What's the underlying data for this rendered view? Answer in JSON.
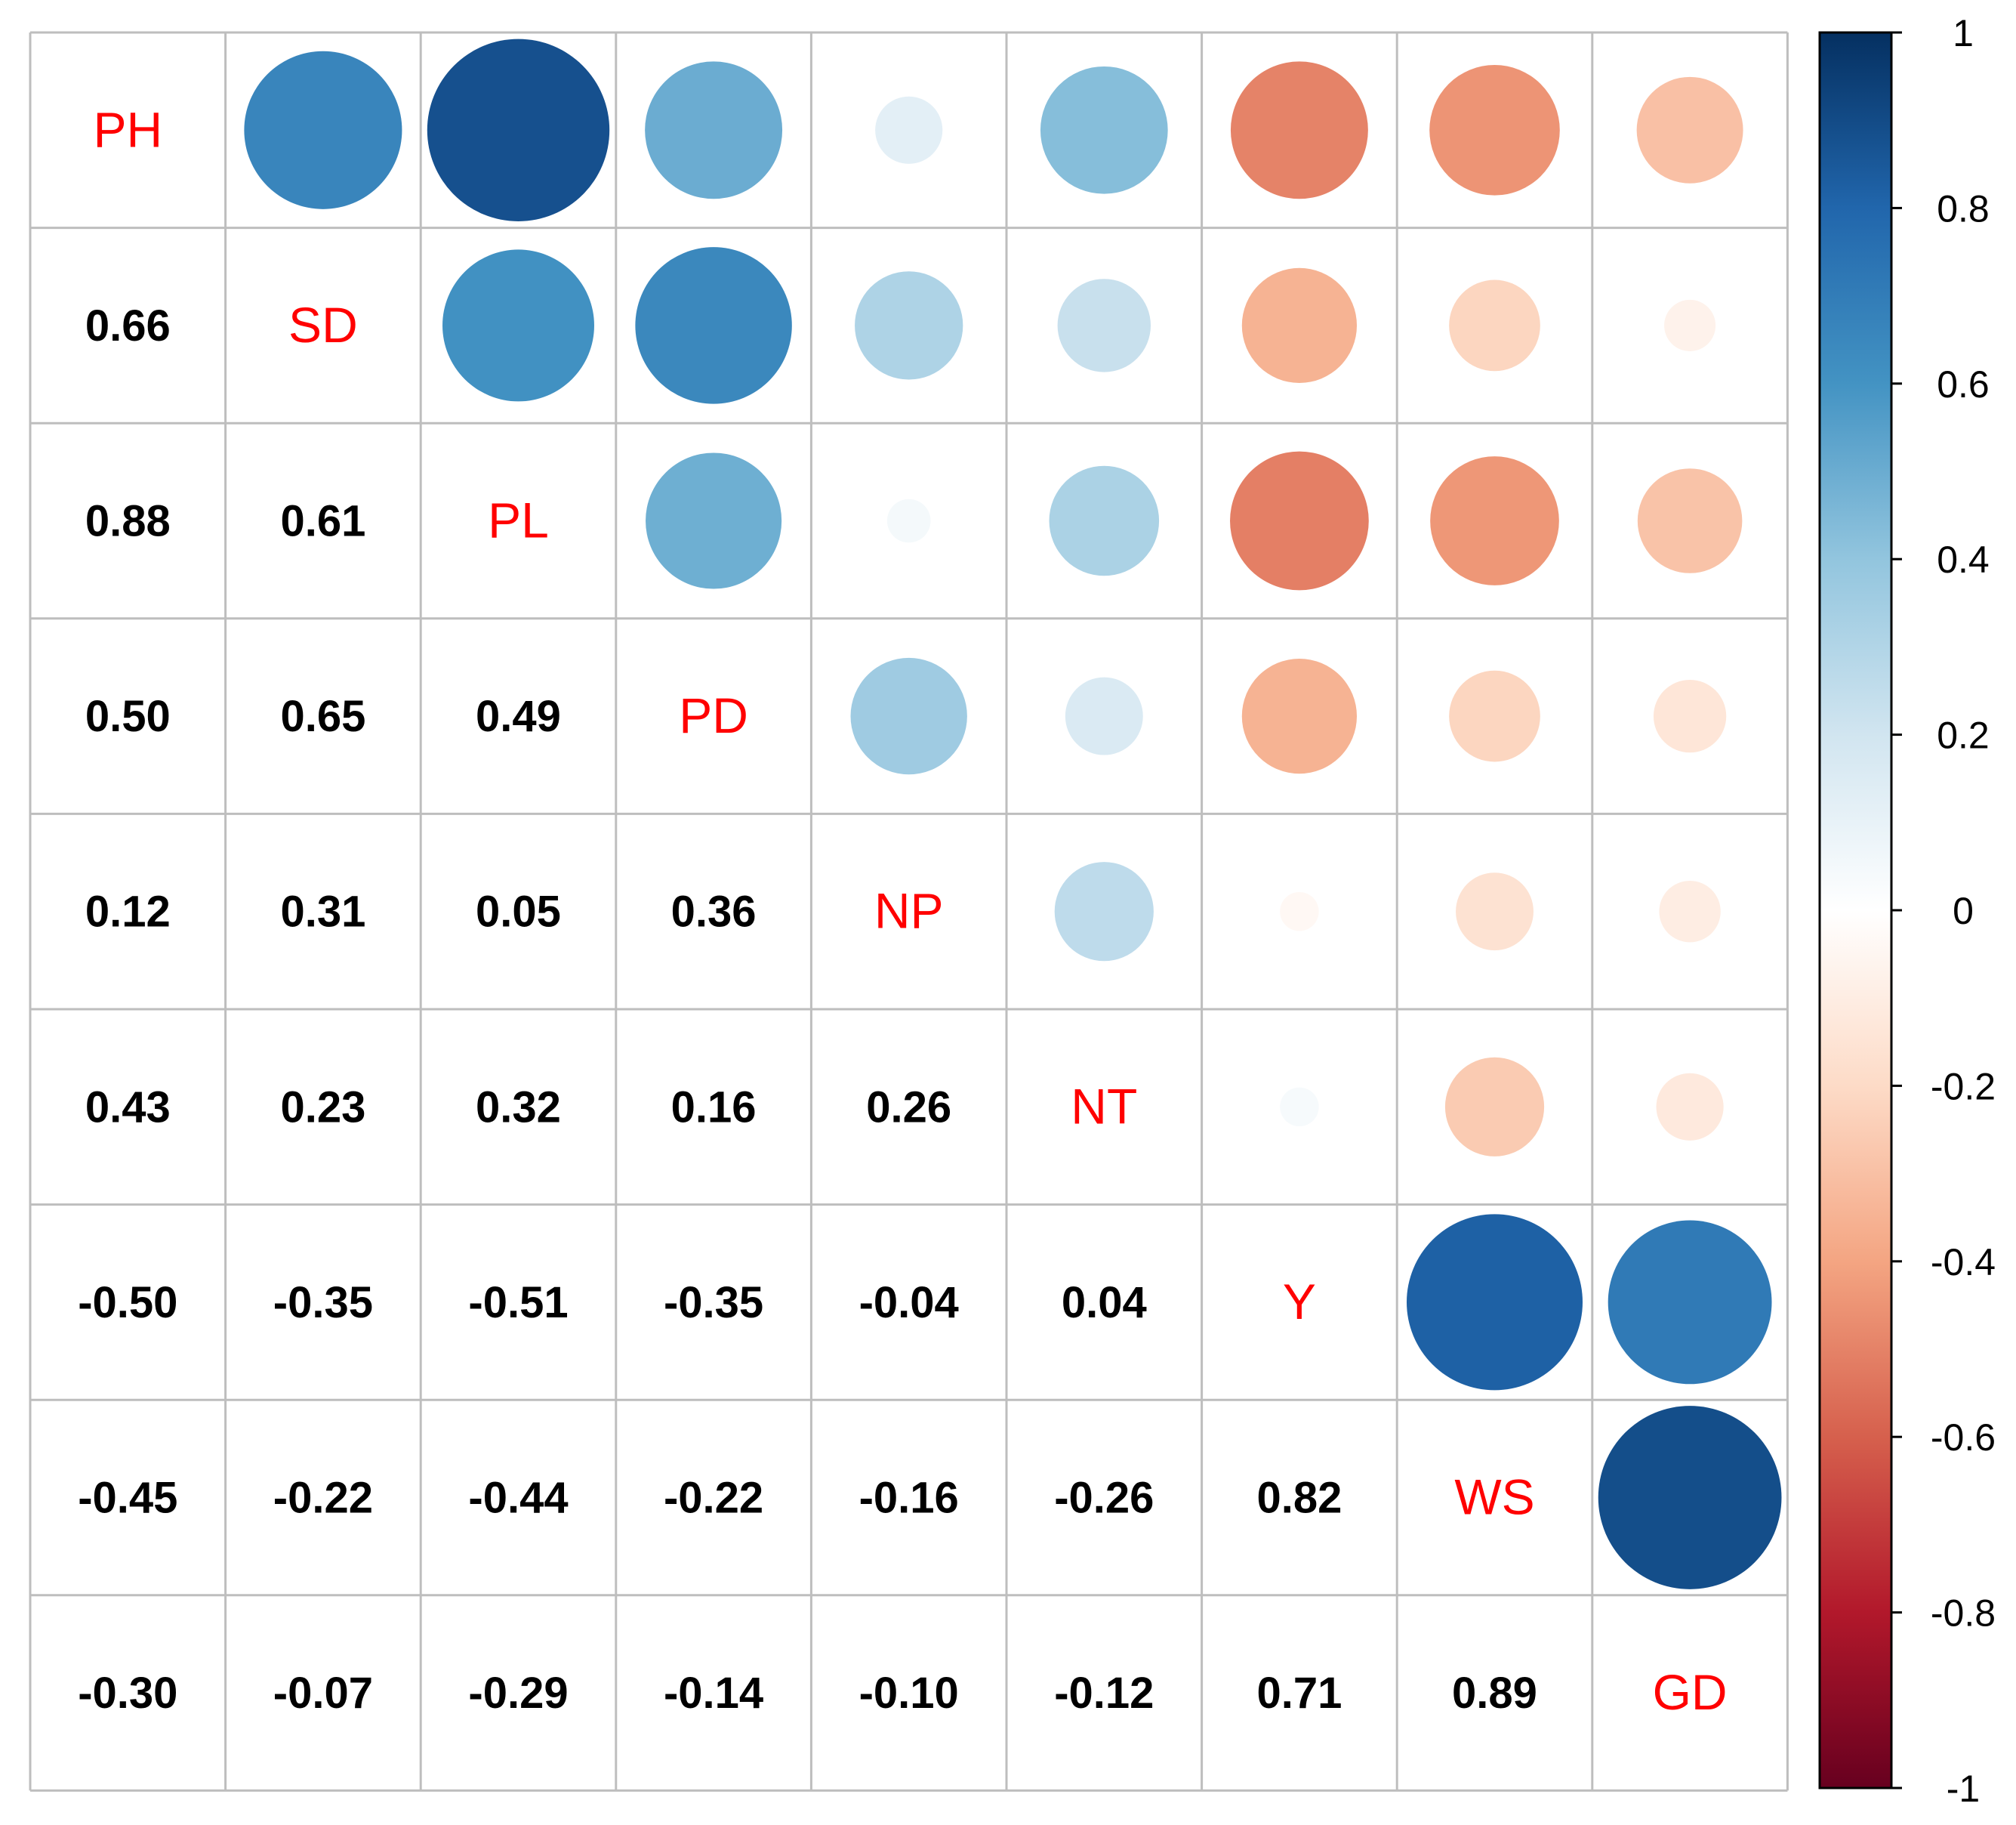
{
  "chart_data": {
    "type": "heatmap",
    "style": "correlation-matrix-mixed",
    "upper": "circle",
    "lower": "number",
    "diag": "label",
    "variables": [
      "PH",
      "SD",
      "PL",
      "PD",
      "NP",
      "NT",
      "Y",
      "WS",
      "GD"
    ],
    "matrix": [
      [
        1,
        0.66,
        0.88,
        0.5,
        0.12,
        0.43,
        -0.5,
        -0.45,
        -0.3
      ],
      [
        0.66,
        1,
        0.61,
        0.65,
        0.31,
        0.23,
        -0.35,
        -0.22,
        -0.07
      ],
      [
        0.88,
        0.61,
        1,
        0.49,
        0.05,
        0.32,
        -0.51,
        -0.44,
        -0.29
      ],
      [
        0.5,
        0.65,
        0.49,
        1,
        0.36,
        0.16,
        -0.35,
        -0.22,
        -0.14
      ],
      [
        0.12,
        0.31,
        0.05,
        0.36,
        1,
        0.26,
        -0.04,
        -0.16,
        -0.1
      ],
      [
        0.43,
        0.23,
        0.32,
        0.16,
        0.26,
        1,
        0.04,
        -0.26,
        -0.12
      ],
      [
        -0.5,
        -0.35,
        -0.51,
        -0.35,
        -0.04,
        0.04,
        1,
        0.82,
        0.71
      ],
      [
        -0.45,
        -0.22,
        -0.44,
        -0.22,
        -0.16,
        -0.26,
        0.82,
        1,
        0.89
      ],
      [
        -0.3,
        -0.07,
        -0.29,
        -0.14,
        -0.1,
        -0.12,
        0.71,
        0.89,
        1
      ]
    ],
    "colorbar": {
      "range": [
        -1,
        1
      ],
      "ticks": [
        1,
        0.8,
        0.6,
        0.4,
        0.2,
        0,
        -0.2,
        -0.4,
        -0.6,
        -0.8,
        -1
      ],
      "tick_labels": [
        "1",
        "0.8",
        "0.6",
        "0.4",
        "0.2",
        "0",
        "-0.2",
        "-0.4",
        "-0.6",
        "-0.8",
        "-1"
      ],
      "position": "right"
    },
    "label_color": "#FF0000",
    "number_color": "#000000",
    "grid_color": "#BEBEBE",
    "colormap": [
      "#67001F",
      "#B2182B",
      "#D6604D",
      "#F4A582",
      "#FDDBC7",
      "#FFFFFF",
      "#D1E5F0",
      "#92C5DE",
      "#4393C3",
      "#2166AC",
      "#053061"
    ]
  }
}
